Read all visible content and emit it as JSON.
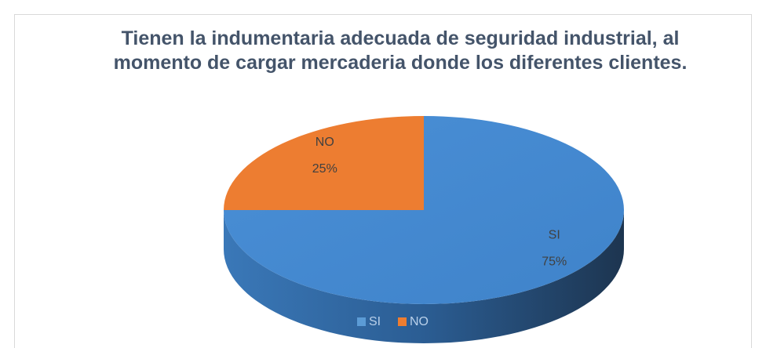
{
  "chart_data": {
    "type": "pie",
    "title": "Tienen la indumentaria adecuada de seguridad industrial, al momento de cargar mercaderia donde los diferentes clientes.",
    "categories": [
      "SI",
      "NO"
    ],
    "values": [
      75,
      25
    ],
    "value_labels": [
      "75%",
      "25%"
    ],
    "colors": [
      "#5b9bd5",
      "#ed7d31"
    ],
    "legend": "bottom"
  }
}
